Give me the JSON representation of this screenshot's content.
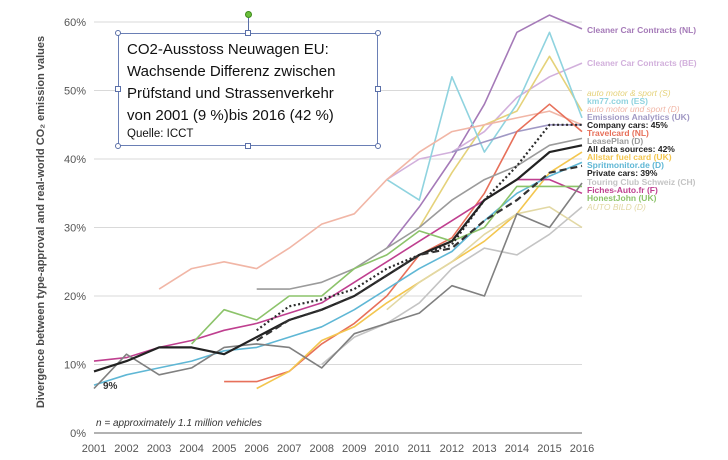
{
  "textbox": {
    "lines": [
      "CO2-Ausstoss Neuwagen EU:",
      "Wachsende Differenz zwischen",
      " Prüfstand und Strassenverkehr",
      "von 2001 (9 %)bis 2016 (42 %)"
    ],
    "source": "Quelle: ICCT"
  },
  "chart_data": {
    "type": "line",
    "title": "",
    "ylabel": "Divergence between type-approval and real-world CO₂ emission values",
    "xlabel": "",
    "x": [
      2001,
      2002,
      2003,
      2004,
      2005,
      2006,
      2007,
      2008,
      2009,
      2010,
      2011,
      2012,
      2013,
      2014,
      2015,
      2016
    ],
    "x_tick_labels": [
      "2001",
      "2002",
      "2003",
      "2004",
      "2005",
      "2006",
      "2007",
      "2008",
      "2009",
      "2010",
      "2011",
      "2012",
      "2013",
      "2014",
      "2015",
      "2016"
    ],
    "ylim": [
      0,
      60
    ],
    "y_ticks": [
      0,
      10,
      20,
      30,
      40,
      50,
      60
    ],
    "y_tick_labels": [
      "0%",
      "10%",
      "20%",
      "30%",
      "40%",
      "50%",
      "60%"
    ],
    "grid": true,
    "legend_placement": "right",
    "annotations": {
      "start_label": "9%",
      "note": "n = approximately 1.1 million vehicles"
    },
    "series": [
      {
        "name": "Cleaner Car Contracts (NL)",
        "color": "#a57ab8",
        "style": "solid",
        "x": [
          2010,
          2011,
          2012,
          2013,
          2014,
          2015,
          2016
        ],
        "y": [
          27,
          33,
          40,
          48,
          58.5,
          61,
          59
        ]
      },
      {
        "name": "Cleaner Car Contracts (BE)",
        "color": "#d2b0dc",
        "style": "solid",
        "x": [
          2010,
          2011,
          2012,
          2013,
          2014,
          2015,
          2016
        ],
        "y": [
          37,
          40,
          41,
          44,
          49,
          52,
          54
        ]
      },
      {
        "name": "auto motor & sport (S)",
        "color": "#e5d27a",
        "style": "solid",
        "x": [
          2011,
          2012,
          2013,
          2014,
          2015,
          2016
        ],
        "y": [
          30,
          38,
          45,
          47,
          55,
          47
        ]
      },
      {
        "name": "km77.com (ES)",
        "color": "#8fd3df",
        "style": "solid",
        "x": [
          2010,
          2011,
          2012,
          2013,
          2014,
          2015,
          2016
        ],
        "y": [
          37,
          34,
          52,
          41,
          48,
          58.5,
          46
        ]
      },
      {
        "name": "auto motor und sport (D)",
        "color": "#f1b6a6",
        "style": "solid",
        "x": [
          2003,
          2004,
          2005,
          2006,
          2007,
          2008,
          2009,
          2010,
          2011,
          2012,
          2013,
          2014,
          2015,
          2016
        ],
        "y": [
          21,
          24,
          25,
          24,
          27,
          30.5,
          32,
          37,
          41,
          44,
          45,
          46,
          47,
          45
        ]
      },
      {
        "name": "Emissions Analytics (UK)",
        "color": "#a098c4",
        "style": "solid",
        "x": [
          2012,
          2013,
          2014,
          2015,
          2016
        ],
        "y": [
          41,
          42.5,
          44,
          45,
          45
        ]
      },
      {
        "name": "Company cars: 45%",
        "color": "#2b2b2b",
        "style": "dotted",
        "x": [
          2006,
          2007,
          2008,
          2009,
          2010,
          2011,
          2012,
          2013,
          2014,
          2015,
          2016
        ],
        "y": [
          15,
          18.5,
          19.5,
          21,
          24,
          26,
          27.5,
          34,
          39,
          45,
          45
        ]
      },
      {
        "name": "Travelcard (NL)",
        "color": "#e7705a",
        "style": "solid",
        "x": [
          2005,
          2006,
          2007,
          2008,
          2009,
          2010,
          2011,
          2012,
          2013,
          2014,
          2015,
          2016
        ],
        "y": [
          7.5,
          7.5,
          9,
          13,
          16,
          20,
          26,
          28.5,
          35,
          44,
          48,
          44
        ]
      },
      {
        "name": "LeasePlan (D)",
        "color": "#9b9b9b",
        "style": "solid",
        "x": [
          2006,
          2007,
          2008,
          2009,
          2010,
          2011,
          2012,
          2013,
          2014,
          2015,
          2016
        ],
        "y": [
          21,
          21,
          22,
          24,
          27,
          30,
          34,
          37,
          39,
          42,
          43
        ]
      },
      {
        "name": "All data sources: 42%",
        "color": "#222222",
        "style": "solid",
        "x": [
          2001,
          2002,
          2003,
          2004,
          2005,
          2006,
          2007,
          2008,
          2009,
          2010,
          2011,
          2012,
          2013,
          2014,
          2015,
          2016
        ],
        "y": [
          9,
          10.5,
          12.5,
          12.5,
          11.5,
          14,
          16.5,
          18,
          20,
          23,
          26,
          28,
          34,
          37,
          41,
          42
        ]
      },
      {
        "name": "Allstar fuel card (UK)",
        "color": "#f3c64f",
        "style": "solid",
        "x": [
          2006,
          2007,
          2008,
          2009,
          2010,
          2011,
          2012,
          2013,
          2014,
          2015,
          2016
        ],
        "y": [
          6.5,
          9,
          13.5,
          15.5,
          19,
          22,
          25,
          28,
          32,
          38,
          41
        ]
      },
      {
        "name": "Spritmonitor.de (D)",
        "color": "#5fb7d5",
        "style": "solid",
        "x": [
          2001,
          2002,
          2003,
          2004,
          2005,
          2006,
          2007,
          2008,
          2009,
          2010,
          2011,
          2012,
          2013,
          2014,
          2015,
          2016
        ],
        "y": [
          7,
          8.5,
          9.5,
          10.5,
          12,
          12.5,
          14,
          15.5,
          18,
          21,
          24,
          26.5,
          31,
          35,
          37.5,
          39.5
        ]
      },
      {
        "name": "Private cars: 39%",
        "color": "#333333",
        "style": "dashed",
        "x": [
          2006,
          2007,
          2008,
          2009,
          2010,
          2011,
          2012,
          2013,
          2014,
          2015,
          2016
        ],
        "y": [
          13.5,
          16.5,
          18,
          20,
          23,
          26,
          27,
          31,
          34,
          38,
          39
        ]
      },
      {
        "name": "Touring Club Schweiz (CH)",
        "color": "#c4c4c4",
        "style": "solid",
        "x": [
          2008,
          2009,
          2010,
          2011,
          2012,
          2013,
          2014,
          2015,
          2016
        ],
        "y": [
          10,
          14,
          16,
          19,
          24,
          27,
          26,
          29,
          33
        ]
      },
      {
        "name": "Fiches-Auto.fr (F)",
        "color": "#bf3f8f",
        "style": "solid",
        "x": [
          2001,
          2002,
          2003,
          2004,
          2005,
          2006,
          2007,
          2008,
          2009,
          2010,
          2011,
          2012,
          2013,
          2014,
          2015,
          2016
        ],
        "y": [
          10.5,
          11,
          12.5,
          13.5,
          15,
          16,
          17.5,
          19,
          22,
          25,
          28,
          31,
          34,
          37,
          37,
          35
        ]
      },
      {
        "name": "HonestJohn (UK)",
        "color": "#8cc36a",
        "style": "solid",
        "x": [
          2004,
          2005,
          2006,
          2007,
          2008,
          2009,
          2010,
          2011,
          2012,
          2013,
          2014,
          2015,
          2016
        ],
        "y": [
          13,
          18,
          16.5,
          20,
          20,
          24,
          26,
          29.5,
          28,
          30,
          36,
          36,
          36
        ]
      },
      {
        "name": "AUTO BILD (D)",
        "color": "#e2d8a4",
        "style": "solid",
        "x": [
          2010,
          2011,
          2012,
          2013,
          2014,
          2015,
          2016
        ],
        "y": [
          18,
          22,
          25,
          29,
          32,
          33,
          30
        ]
      },
      {
        "name": "",
        "color": "#808080",
        "style": "solid",
        "x": [
          2001,
          2002,
          2003,
          2004,
          2005,
          2006,
          2007,
          2008,
          2009,
          2010,
          2011,
          2012,
          2013,
          2014,
          2015,
          2016
        ],
        "y": [
          6.5,
          11.5,
          8.5,
          9.5,
          12.5,
          13,
          12.5,
          9.5,
          14.5,
          16,
          17.5,
          21.5,
          20,
          32,
          30,
          36.5
        ]
      }
    ]
  }
}
